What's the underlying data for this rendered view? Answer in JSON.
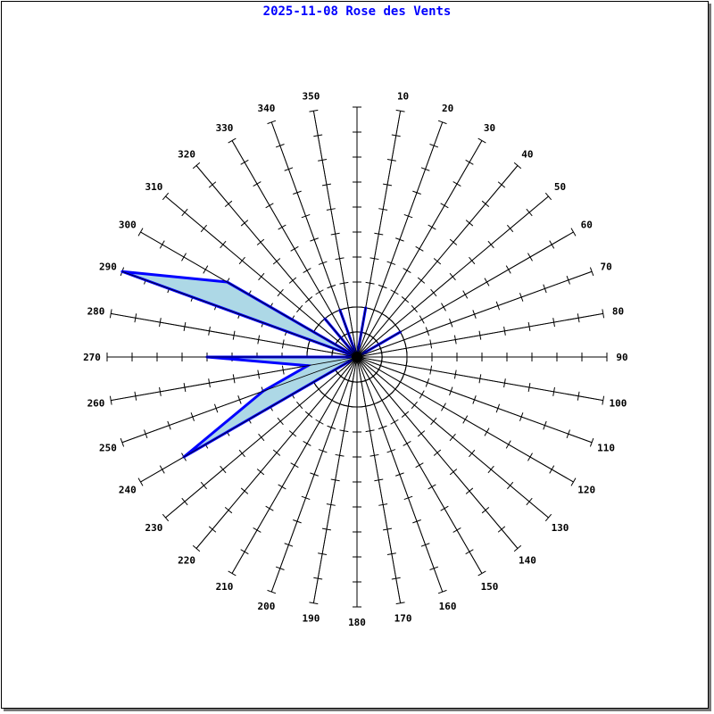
{
  "chart_data": {
    "type": "radar",
    "title": "2025-11-08 Rose des Vents",
    "directions": [
      0,
      10,
      20,
      30,
      40,
      50,
      60,
      70,
      80,
      90,
      100,
      110,
      120,
      130,
      140,
      150,
      160,
      170,
      180,
      190,
      200,
      210,
      220,
      230,
      240,
      250,
      260,
      270,
      280,
      290,
      300,
      310,
      320,
      330,
      340,
      350
    ],
    "direction_labels": [
      "",
      "10",
      "20",
      "30",
      "40",
      "50",
      "60",
      "70",
      "80",
      "90",
      "100",
      "110",
      "120",
      "130",
      "140",
      "150",
      "160",
      "170",
      "180",
      "190",
      "200",
      "210",
      "220",
      "230",
      "240",
      "250",
      "260",
      "270",
      "280",
      "290",
      "300",
      "310",
      "320",
      "330",
      "340",
      "350"
    ],
    "values": [
      0,
      2,
      0,
      0,
      0,
      0,
      2,
      0,
      0,
      0,
      0,
      0,
      0,
      0,
      0,
      0,
      0,
      0,
      0,
      0,
      0,
      0,
      0,
      0,
      8,
      4,
      2,
      6,
      0,
      10,
      6,
      0,
      2,
      0,
      2,
      0
    ],
    "rlim": [
      0,
      10
    ],
    "reference_circles": [
      1,
      2
    ],
    "colors": {
      "fill": "#add8e6",
      "stroke": "#0000ff",
      "title": "#0000ff"
    }
  }
}
